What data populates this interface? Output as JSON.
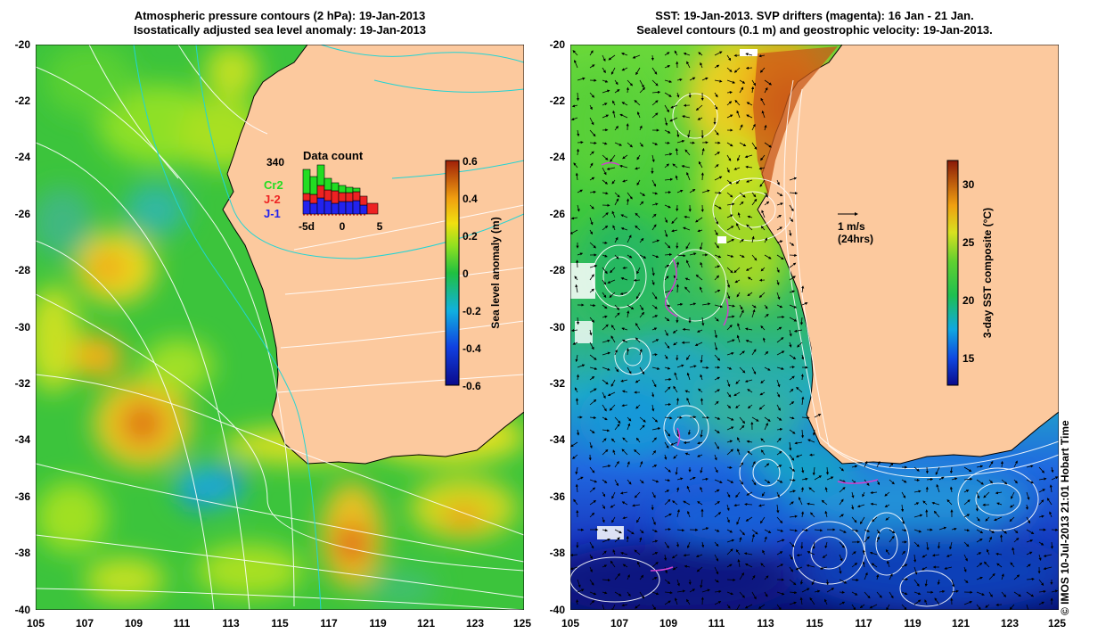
{
  "left_map": {
    "title_line1": "Atmospheric pressure contours (2 hPa): 19-Jan-2013",
    "title_line2": "Isostatically adjusted sea level anomaly: 19-Jan-2013",
    "lat_ticks": [
      "-20",
      "-22",
      "-24",
      "-26",
      "-28",
      "-30",
      "-32",
      "-34",
      "-36",
      "-38",
      "-40"
    ],
    "lon_ticks": [
      "105",
      "107",
      "109",
      "111",
      "113",
      "115",
      "117",
      "119",
      "121",
      "123",
      "125"
    ],
    "colorbar": {
      "label": "Sea level anomaly (m)",
      "ticks": [
        "0.6",
        "0.4",
        "0.2",
        "0",
        "-0.2",
        "-0.4",
        "-0.6"
      ],
      "range": [
        -0.6,
        0.6
      ]
    },
    "data_count": {
      "title": "Data count",
      "max_label": "340",
      "missions": [
        "Cr2",
        "J-2",
        "J-1"
      ],
      "mission_colors": [
        "#22dd22",
        "#ee2222",
        "#2222ee"
      ],
      "x_ticks": [
        "-5d",
        "0",
        "5"
      ]
    }
  },
  "right_map": {
    "title_line1": "SST: 19-Jan-2013. SVP drifters (magenta): 16 Jan - 21 Jan.",
    "title_line2": "Sealevel contours (0.1 m) and geostrophic velocity: 19-Jan-2013.",
    "lat_ticks": [
      "-20",
      "-22",
      "-24",
      "-26",
      "-28",
      "-30",
      "-32",
      "-34",
      "-36",
      "-38",
      "-40"
    ],
    "lon_ticks": [
      "105",
      "107",
      "109",
      "111",
      "113",
      "115",
      "117",
      "119",
      "121",
      "123",
      "125"
    ],
    "velocity_scale_label": "1 m/s",
    "velocity_scale_sublabel": "(24hrs)",
    "colorbar": {
      "label": "3-day SST composite (°C)",
      "ticks": [
        "30",
        "25",
        "20",
        "15"
      ],
      "range": [
        12.5,
        32
      ]
    }
  },
  "copyright": "© IMOS 10-Jul-2013 21:01 Hobart Time",
  "colors": {
    "land": "#fcc99e",
    "coast": "#000000",
    "pressure_contours": "#ffffff",
    "cyan_contours": "#22d4d4"
  }
}
